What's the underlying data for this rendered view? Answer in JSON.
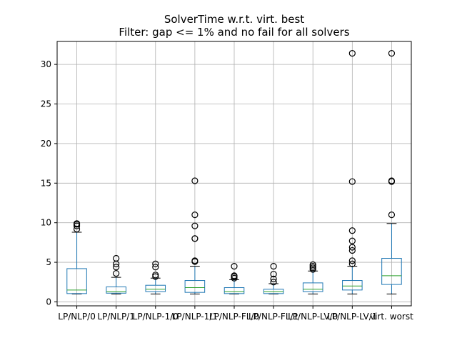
{
  "chart_data": {
    "type": "box",
    "title": "SolverTime w.r.t. virt. best",
    "subtitle": "Filter: gap <= 1% and no fail for all solvers",
    "xlabel": "",
    "ylabel": "",
    "ylim": [
      -0.5,
      32.9
    ],
    "yticks": [
      0,
      5,
      10,
      15,
      20,
      25,
      30
    ],
    "grid": true,
    "colors": {
      "box": "#1f77b4",
      "median": "#2ca02c",
      "whisker": "#1f77b4",
      "flier": "#000000",
      "grid": "#b0b0b0"
    },
    "categories": [
      "LP/NLP/0",
      "LP/NLP/1",
      "LP/NLP-1/0",
      "LP/NLP-1/1",
      "LP/NLP-FL/0",
      "LP/NLP-FL/1",
      "LP/NLP-LV/0",
      "LP/NLP-LV/1",
      "virt. worst"
    ],
    "boxes": [
      {
        "low": 1.0,
        "q1": 1.05,
        "median": 1.5,
        "q3": 4.2,
        "high": 8.8,
        "fliers": [
          9.2,
          9.6,
          9.8,
          9.9
        ]
      },
      {
        "low": 1.0,
        "q1": 1.1,
        "median": 1.3,
        "q3": 1.9,
        "high": 3.1,
        "fliers": [
          3.6,
          4.4,
          4.8,
          5.5
        ]
      },
      {
        "low": 1.0,
        "q1": 1.3,
        "median": 1.6,
        "q3": 2.1,
        "high": 3.0,
        "fliers": [
          3.2,
          3.4,
          4.4,
          4.8
        ]
      },
      {
        "low": 1.0,
        "q1": 1.2,
        "median": 1.8,
        "q3": 2.7,
        "high": 4.5,
        "fliers": [
          5.1,
          5.2,
          8.0,
          8.0,
          9.6,
          11.0,
          15.3
        ]
      },
      {
        "low": 1.0,
        "q1": 1.05,
        "median": 1.3,
        "q3": 1.8,
        "high": 2.8,
        "fliers": [
          3.0,
          3.2,
          3.3,
          4.5
        ]
      },
      {
        "low": 1.0,
        "q1": 1.05,
        "median": 1.3,
        "q3": 1.6,
        "high": 2.3,
        "fliers": [
          2.5,
          2.9,
          3.5,
          4.5
        ]
      },
      {
        "low": 1.0,
        "q1": 1.3,
        "median": 1.6,
        "q3": 2.4,
        "high": 3.9,
        "fliers": [
          4.1,
          4.3,
          4.5,
          4.7
        ]
      },
      {
        "low": 1.0,
        "q1": 1.5,
        "median": 2.0,
        "q3": 2.7,
        "high": 4.5,
        "fliers": [
          4.8,
          5.2,
          6.5,
          6.9,
          7.7,
          9.0,
          15.2,
          31.4
        ]
      },
      {
        "low": 1.0,
        "q1": 2.2,
        "median": 3.3,
        "q3": 5.5,
        "high": 9.9,
        "fliers": [
          11.0,
          15.2,
          15.3,
          31.4
        ]
      }
    ]
  }
}
